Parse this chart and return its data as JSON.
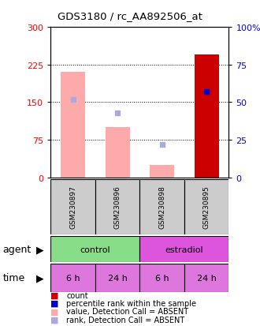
{
  "title": "GDS3180 / rc_AA892506_at",
  "samples": [
    "GSM230897",
    "GSM230896",
    "GSM230898",
    "GSM230895"
  ],
  "bar_values": [
    210,
    100,
    25,
    245
  ],
  "bar_colors": [
    "#ffaaaa",
    "#ffaaaa",
    "#ffaaaa",
    "#cc0000"
  ],
  "rank_values": [
    52,
    43,
    22,
    57
  ],
  "rank_colors": [
    "#aaaadd",
    "#aaaadd",
    "#aaaadd",
    "#0000cc"
  ],
  "ylim_left": [
    0,
    300
  ],
  "ylim_right": [
    0,
    100
  ],
  "yticks_left": [
    0,
    75,
    150,
    225,
    300
  ],
  "yticks_right": [
    0,
    25,
    50,
    75,
    100
  ],
  "time_labels": [
    "6 h",
    "24 h",
    "6 h",
    "24 h"
  ],
  "legend_items": [
    {
      "label": "count",
      "color": "#cc0000"
    },
    {
      "label": "percentile rank within the sample",
      "color": "#0000cc"
    },
    {
      "label": "value, Detection Call = ABSENT",
      "color": "#ffaaaa"
    },
    {
      "label": "rank, Detection Call = ABSENT",
      "color": "#aaaadd"
    }
  ],
  "agent_green": "#88dd88",
  "agent_pink": "#dd55dd",
  "time_pink": "#dd77dd",
  "gray_sample": "#cccccc",
  "bar_width": 0.55
}
